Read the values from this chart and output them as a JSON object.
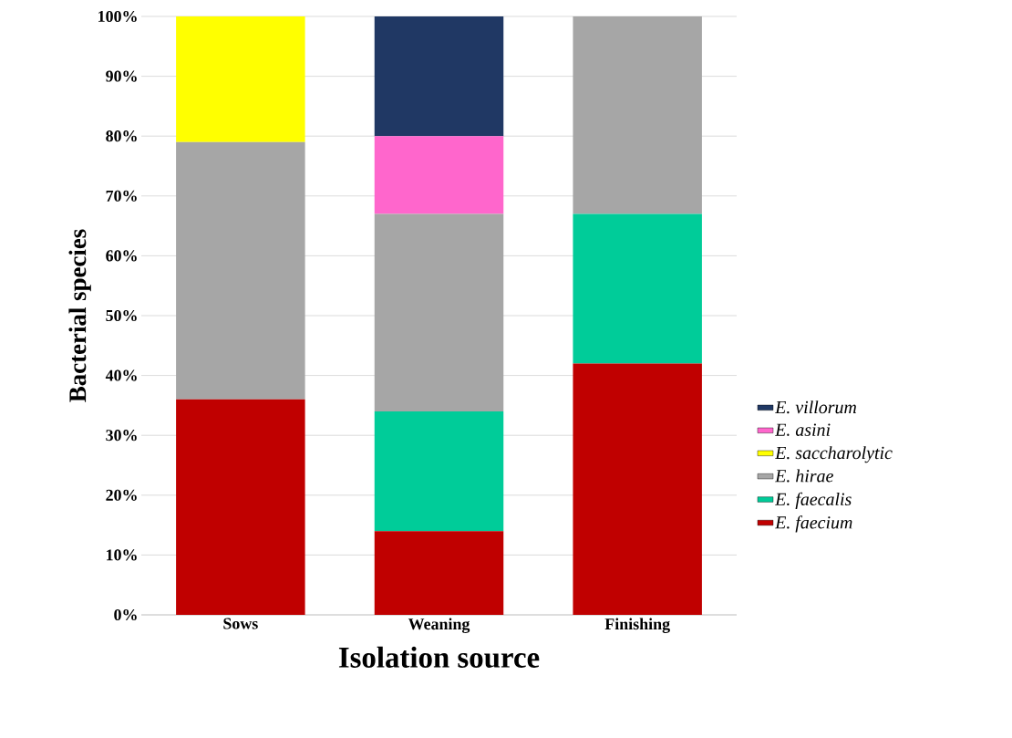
{
  "chart_data": {
    "type": "bar",
    "stacked": true,
    "xlabel": "Isolation source",
    "ylabel": "Bacterial species",
    "categories": [
      "Sows",
      "Weaning",
      "Finishing"
    ],
    "series": [
      {
        "name": "E. faecium",
        "color": "#c00000",
        "values": [
          36,
          14,
          42
        ]
      },
      {
        "name": "E. faecalis",
        "color": "#00cc99",
        "values": [
          0,
          20,
          25
        ]
      },
      {
        "name": "E. hirae",
        "color": "#a6a6a6",
        "values": [
          43,
          33,
          33
        ]
      },
      {
        "name": "E. saccharolytic",
        "color": "#ffff00",
        "values": [
          21,
          0,
          0
        ]
      },
      {
        "name": "E. asini",
        "color": "#ff66cc",
        "values": [
          0,
          13,
          0
        ]
      },
      {
        "name": "E. villorum",
        "color": "#203864",
        "values": [
          0,
          20,
          0
        ]
      }
    ],
    "ylim": [
      0,
      100
    ],
    "yticks": [
      {
        "value": 0,
        "label": "0%"
      },
      {
        "value": 10,
        "label": "10%"
      },
      {
        "value": 20,
        "label": "20%"
      },
      {
        "value": 30,
        "label": "30%"
      },
      {
        "value": 40,
        "label": "40%"
      },
      {
        "value": 50,
        "label": "50%"
      },
      {
        "value": 60,
        "label": "60%"
      },
      {
        "value": 70,
        "label": "70%"
      },
      {
        "value": 80,
        "label": "80%"
      },
      {
        "value": 90,
        "label": "90%"
      },
      {
        "value": 100,
        "label": "100%"
      }
    ],
    "grid": "y",
    "legend": "right"
  }
}
